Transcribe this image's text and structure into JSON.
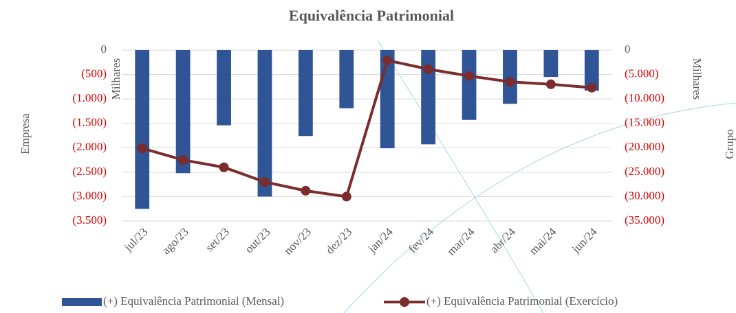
{
  "chart_data": {
    "type": "bar_line",
    "title": "Equivalência Patrimonial",
    "y_label": "Empresa",
    "y_unit": "Milhares",
    "y2_label": "Grupo",
    "y2_unit": "Milhares",
    "categories": [
      "jul/23",
      "ago/23",
      "set/23",
      "out/23",
      "nov/23",
      "dez/23",
      "jan/24",
      "fev/24",
      "mar/24",
      "abr/24",
      "mai/24",
      "jun/24"
    ],
    "series": [
      {
        "name": "(+) Equivalência Patrimonial (Mensal)",
        "type": "bar",
        "color": "#2f5597",
        "values": [
          -3250,
          -2520,
          -1540,
          -3000,
          -1760,
          -1190,
          -2010,
          -1930,
          -1430,
          -1100,
          -550,
          -830
        ]
      },
      {
        "name": "(+) Equivalência Patrimonial (Exercício)",
        "type": "line",
        "axis": "y2",
        "color": "#7b2c2c",
        "values": [
          -20100,
          -22500,
          -24000,
          -27000,
          -28800,
          -30000,
          -2100,
          -3900,
          -5300,
          -6500,
          -7000,
          -7700
        ]
      }
    ],
    "ylim": [
      0,
      -3500
    ],
    "yticks": [
      0,
      {
        "value": -500,
        "label": "(500)"
      },
      {
        "value": -1000,
        "label": "(1.000)"
      },
      {
        "value": -1500,
        "label": "(1.500)"
      },
      {
        "value": -2000,
        "label": "(2.000)"
      },
      {
        "value": -2500,
        "label": "(2.500)"
      },
      {
        "value": -3000,
        "label": "(3.000)"
      },
      {
        "value": -3500,
        "label": "(3.500)"
      }
    ],
    "y2lim": [
      0,
      -35000
    ],
    "y2ticks": [
      0,
      {
        "value": -5000,
        "label": "(5.000)"
      },
      {
        "value": -10000,
        "label": "(10.000)"
      },
      {
        "value": -15000,
        "label": "(15.000)"
      },
      {
        "value": -20000,
        "label": "(20.000)"
      },
      {
        "value": -25000,
        "label": "(25.000)"
      },
      {
        "value": -30000,
        "label": "(30.000)"
      },
      {
        "value": -35000,
        "label": "(35.000)"
      }
    ],
    "grid": true,
    "legend": "bottom"
  }
}
